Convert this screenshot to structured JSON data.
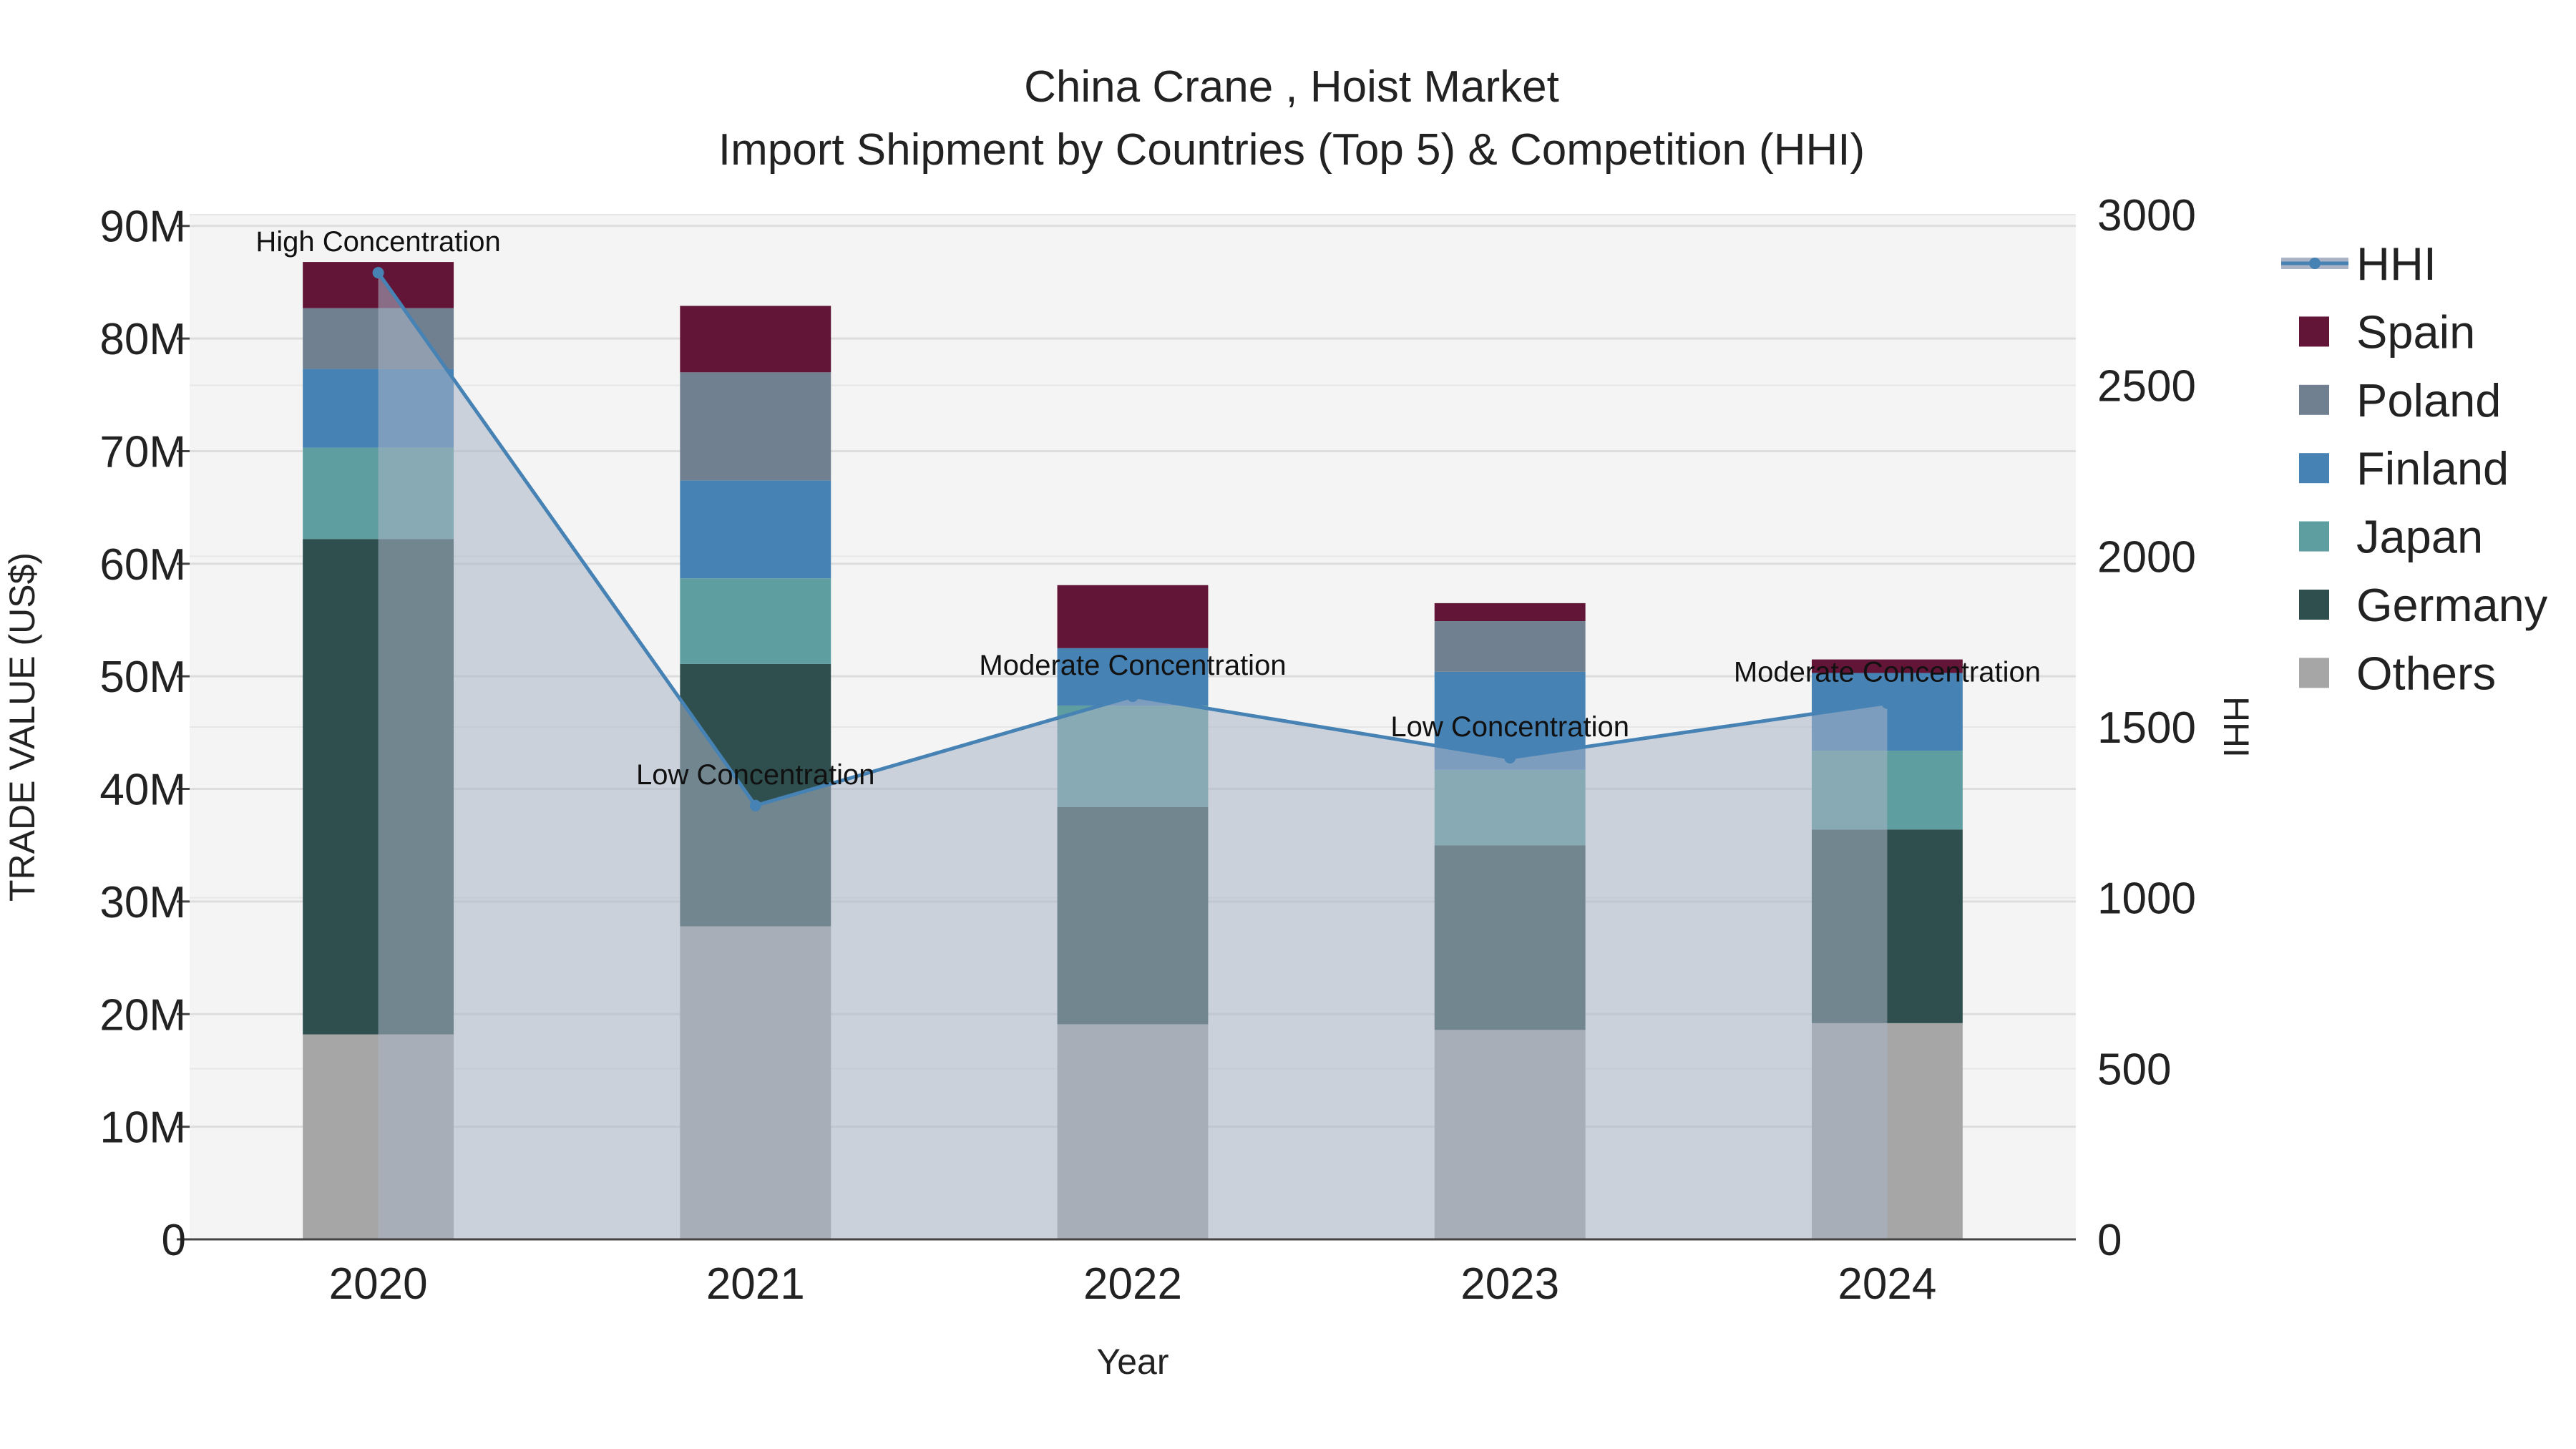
{
  "chart_data": {
    "type": "bar",
    "title_line1": "China Crane , Hoist Market",
    "title_line2": "Import Shipment by Countries (Top 5) & Competition (HHI)",
    "xlabel": "Year",
    "ylabel_left": "TRADE VALUE (US$)",
    "ylabel_right": "HHI",
    "categories": [
      "2020",
      "2021",
      "2022",
      "2023",
      "2024"
    ],
    "y_left_range": [
      0,
      91000000
    ],
    "y_left_ticks": [
      {
        "value": 0,
        "label": "0"
      },
      {
        "value": 10000000,
        "label": "10M"
      },
      {
        "value": 20000000,
        "label": "20M"
      },
      {
        "value": 30000000,
        "label": "30M"
      },
      {
        "value": 40000000,
        "label": "40M"
      },
      {
        "value": 50000000,
        "label": "50M"
      },
      {
        "value": 60000000,
        "label": "60M"
      },
      {
        "value": 70000000,
        "label": "70M"
      },
      {
        "value": 80000000,
        "label": "80M"
      },
      {
        "value": 90000000,
        "label": "90M"
      }
    ],
    "y_right_range": [
      0,
      3000
    ],
    "y_right_ticks": [
      {
        "value": 0,
        "label": "0"
      },
      {
        "value": 500,
        "label": "500"
      },
      {
        "value": 1000,
        "label": "1000"
      },
      {
        "value": 1500,
        "label": "1500"
      },
      {
        "value": 2000,
        "label": "2000"
      },
      {
        "value": 2500,
        "label": "2500"
      },
      {
        "value": 3000,
        "label": "3000"
      }
    ],
    "series": [
      {
        "name": "Others",
        "color": "#a6a6a6",
        "values": [
          18200000,
          27800000,
          19100000,
          18600000,
          19200000
        ]
      },
      {
        "name": "Germany",
        "color": "#2f4f4f",
        "values": [
          44000000,
          23300000,
          19300000,
          16400000,
          17200000
        ]
      },
      {
        "name": "Japan",
        "color": "#5f9ea0",
        "values": [
          8100000,
          7600000,
          9000000,
          6700000,
          7000000
        ]
      },
      {
        "name": "Finland",
        "color": "#4682b4",
        "values": [
          7000000,
          8700000,
          5100000,
          8700000,
          6900000
        ]
      },
      {
        "name": "Poland",
        "color": "#708090",
        "values": [
          5400000,
          9600000,
          0,
          4500000,
          0
        ]
      },
      {
        "name": "Spain",
        "color": "#631537",
        "values": [
          4100000,
          5900000,
          5600000,
          1600000,
          1200000
        ]
      }
    ],
    "hhi": {
      "name": "HHI",
      "color": "#4682b4",
      "fill_color": "#aab4c6",
      "values": [
        2830,
        1270,
        1590,
        1410,
        1570
      ],
      "annotations": [
        "High Concentration",
        "Low Concentration",
        "Moderate Concentration",
        "Low Concentration",
        "Moderate Concentration"
      ]
    },
    "legend": [
      "HHI",
      "Spain",
      "Poland",
      "Finland",
      "Japan",
      "Germany",
      "Others"
    ],
    "legend_position": "right"
  }
}
